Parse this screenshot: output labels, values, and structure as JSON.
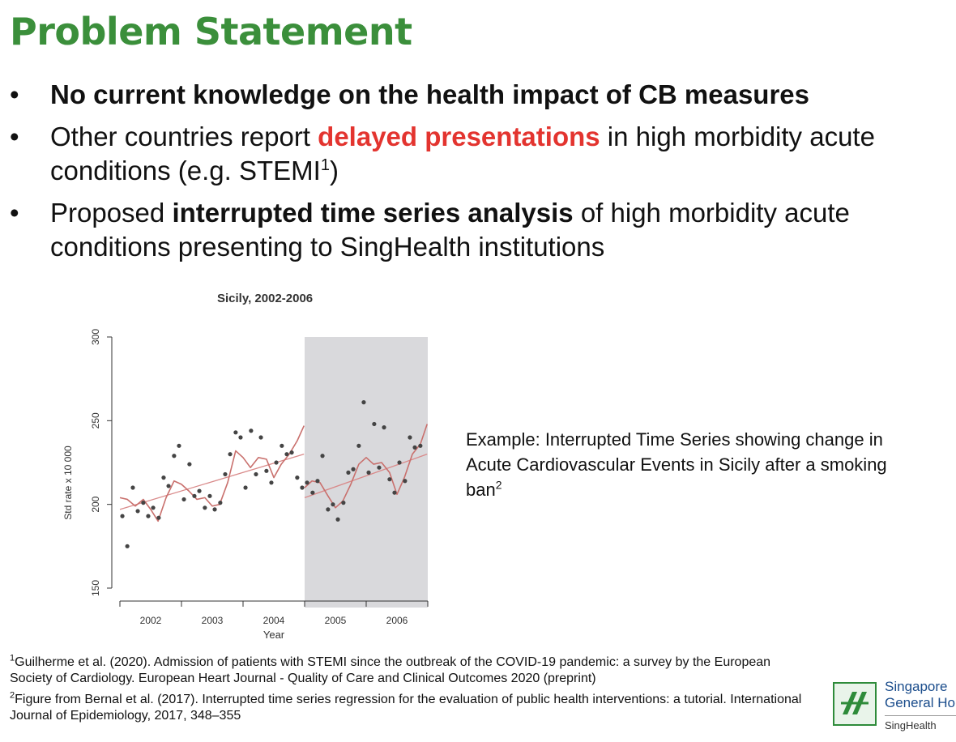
{
  "title": "Problem Statement",
  "bullets": [
    {
      "bullet": "•",
      "text": "No current knowledge on the health impact of CB measures"
    },
    {
      "bullet": "•",
      "before": "Other countries report ",
      "highlight": "delayed presentations",
      "after": " in high morbidity acute conditions (e.g. STEMI",
      "sup": "1",
      "end": ")"
    },
    {
      "bullet": "•",
      "before": "Proposed ",
      "highlight": "interrupted time series analysis",
      "after": " of high morbidity acute conditions presenting to SingHealth institutions"
    }
  ],
  "chart_data": {
    "type": "scatter",
    "title": "Sicily, 2002-2006",
    "xlabel": "Year",
    "ylabel": "Std rate x 10 000",
    "xticks": [
      "2002",
      "2003",
      "2004",
      "2005",
      "2006"
    ],
    "yticks": [
      "150",
      "200",
      "250",
      "300"
    ],
    "ylim": [
      150,
      300
    ],
    "xlim": [
      2002,
      2007
    ],
    "intervention_start": 2005,
    "shaded_region": [
      2005,
      2007
    ],
    "points": [
      [
        2002.04,
        193
      ],
      [
        2002.12,
        175
      ],
      [
        2002.21,
        210
      ],
      [
        2002.29,
        196
      ],
      [
        2002.38,
        201
      ],
      [
        2002.46,
        193
      ],
      [
        2002.54,
        198
      ],
      [
        2002.63,
        192
      ],
      [
        2002.71,
        216
      ],
      [
        2002.79,
        211
      ],
      [
        2002.88,
        229
      ],
      [
        2002.96,
        235
      ],
      [
        2003.04,
        203
      ],
      [
        2003.13,
        224
      ],
      [
        2003.21,
        205
      ],
      [
        2003.29,
        208
      ],
      [
        2003.38,
        198
      ],
      [
        2003.46,
        205
      ],
      [
        2003.54,
        197
      ],
      [
        2003.63,
        201
      ],
      [
        2003.71,
        218
      ],
      [
        2003.79,
        230
      ],
      [
        2003.88,
        243
      ],
      [
        2003.96,
        240
      ],
      [
        2004.04,
        210
      ],
      [
        2004.13,
        244
      ],
      [
        2004.21,
        218
      ],
      [
        2004.29,
        240
      ],
      [
        2004.38,
        220
      ],
      [
        2004.46,
        213
      ],
      [
        2004.54,
        225
      ],
      [
        2004.63,
        235
      ],
      [
        2004.71,
        230
      ],
      [
        2004.79,
        231
      ],
      [
        2004.88,
        216
      ],
      [
        2004.96,
        210
      ],
      [
        2005.04,
        213
      ],
      [
        2005.13,
        207
      ],
      [
        2005.21,
        214
      ],
      [
        2005.29,
        229
      ],
      [
        2005.38,
        197
      ],
      [
        2005.46,
        200
      ],
      [
        2005.54,
        191
      ],
      [
        2005.63,
        201
      ],
      [
        2005.71,
        219
      ],
      [
        2005.79,
        221
      ],
      [
        2005.88,
        235
      ],
      [
        2005.96,
        261
      ],
      [
        2006.04,
        219
      ],
      [
        2006.13,
        248
      ],
      [
        2006.21,
        222
      ],
      [
        2006.29,
        246
      ],
      [
        2006.38,
        215
      ],
      [
        2006.46,
        207
      ],
      [
        2006.54,
        225
      ],
      [
        2006.63,
        214
      ],
      [
        2006.71,
        240
      ],
      [
        2006.79,
        234
      ],
      [
        2006.88,
        235
      ]
    ],
    "trend_pre": [
      [
        2002.0,
        197
      ],
      [
        2004.99,
        230
      ]
    ],
    "trend_post": [
      [
        2005.0,
        204
      ],
      [
        2006.99,
        230
      ]
    ],
    "smooth_pre": [
      [
        2002.0,
        204
      ],
      [
        2002.12,
        203
      ],
      [
        2002.25,
        199
      ],
      [
        2002.38,
        203
      ],
      [
        2002.5,
        197
      ],
      [
        2002.62,
        190
      ],
      [
        2002.75,
        204
      ],
      [
        2002.88,
        214
      ],
      [
        2003.0,
        212
      ],
      [
        2003.12,
        208
      ],
      [
        2003.25,
        203
      ],
      [
        2003.38,
        204
      ],
      [
        2003.5,
        199
      ],
      [
        2003.62,
        200
      ],
      [
        2003.75,
        213
      ],
      [
        2003.88,
        232
      ],
      [
        2004.0,
        228
      ],
      [
        2004.12,
        222
      ],
      [
        2004.25,
        228
      ],
      [
        2004.38,
        227
      ],
      [
        2004.5,
        216
      ],
      [
        2004.62,
        224
      ],
      [
        2004.75,
        230
      ],
      [
        2004.88,
        238
      ],
      [
        2004.99,
        247
      ]
    ],
    "smooth_post": [
      [
        2005.0,
        210
      ],
      [
        2005.12,
        214
      ],
      [
        2005.25,
        213
      ],
      [
        2005.38,
        205
      ],
      [
        2005.5,
        198
      ],
      [
        2005.62,
        202
      ],
      [
        2005.75,
        212
      ],
      [
        2005.88,
        224
      ],
      [
        2006.0,
        228
      ],
      [
        2006.12,
        224
      ],
      [
        2006.25,
        225
      ],
      [
        2006.38,
        219
      ],
      [
        2006.5,
        206
      ],
      [
        2006.62,
        216
      ],
      [
        2006.75,
        230
      ],
      [
        2006.88,
        236
      ],
      [
        2006.99,
        248
      ]
    ],
    "colors": {
      "points": "#444444",
      "trend": "#d98a8a",
      "smooth": "#c9706d",
      "shade": "#d9d9dc",
      "axis": "#333333"
    }
  },
  "caption": {
    "text": "Example: Interrupted Time Series showing change in Acute Cardiovascular Events in Sicily after a smoking ban",
    "sup": "2"
  },
  "footnotes": [
    {
      "sup": "1",
      "text": "Guilherme et al. (2020). Admission of patients with STEMI since the outbreak of the COVID-19 pandemic: a survey by the European Society of Cardiology. European Heart Journal - Quality of Care and Clinical Outcomes 2020 (preprint)"
    },
    {
      "sup": "2",
      "text": "Figure from Bernal et al. (2017). Interrupted time series regression for the evaluation of public health interventions: a tutorial. International Journal of Epidemiology, 2017, 348–355"
    }
  ],
  "logo": {
    "line1": "Singapore",
    "line2": "General Ho",
    "line3": "SingHealth",
    "icon": "sgh-logo-icon",
    "color": "#2e8b3a"
  }
}
